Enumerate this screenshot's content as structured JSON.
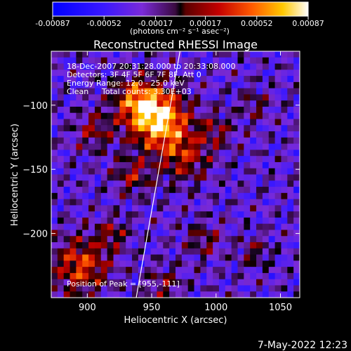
{
  "colorbar": {
    "tick_labels": [
      "-0.00087",
      "-0.00052",
      "-0.00017",
      "0.00017",
      "0.00052",
      "0.00087"
    ],
    "tick_values": [
      -0.00087,
      -0.00052,
      -0.00017,
      0.00017,
      0.00052,
      0.00087
    ],
    "range": [
      -0.00087,
      0.00087
    ],
    "unit_label": "(photons cm⁻² s⁻¹ asec⁻²)",
    "colormap": "RHESSI blue-purple-red-yellow-white"
  },
  "annotations": {
    "time": "18-Dec-2007 20:31:28.000 to 20:33:08.000",
    "detectors": "Detectors: 3F 4F 5F 6F 7F 8F, Att 0",
    "energy": "Energy Range: 12.0 - 25.0 keV",
    "clean_label": "Clean",
    "counts": "Total counts: 3.30E+03",
    "peak": "Position of Peak = [955,-111]"
  },
  "footer": {
    "timestamp": "7-May-2022 12:23"
  },
  "chart_data": {
    "type": "heatmap",
    "title": "Reconstructed RHESSI Image",
    "xlabel": "Heliocentric X (arcsec)",
    "ylabel": "Heliocentric Y (arcsec)",
    "xlim": [
      872,
      1065
    ],
    "ylim": [
      -250,
      -58
    ],
    "x_ticks": [
      900,
      950,
      1000,
      1050
    ],
    "x_tick_labels": [
      "900",
      "950",
      "1000",
      "1050"
    ],
    "y_ticks": [
      -100,
      -150,
      -200
    ],
    "y_tick_labels": [
      "−100",
      "−150",
      "−200"
    ],
    "peak_position": [
      955,
      -111
    ],
    "limb_line": {
      "x": [
        938,
        972
      ],
      "y": [
        -250,
        -58
      ]
    },
    "grid": false,
    "legend": "none"
  }
}
